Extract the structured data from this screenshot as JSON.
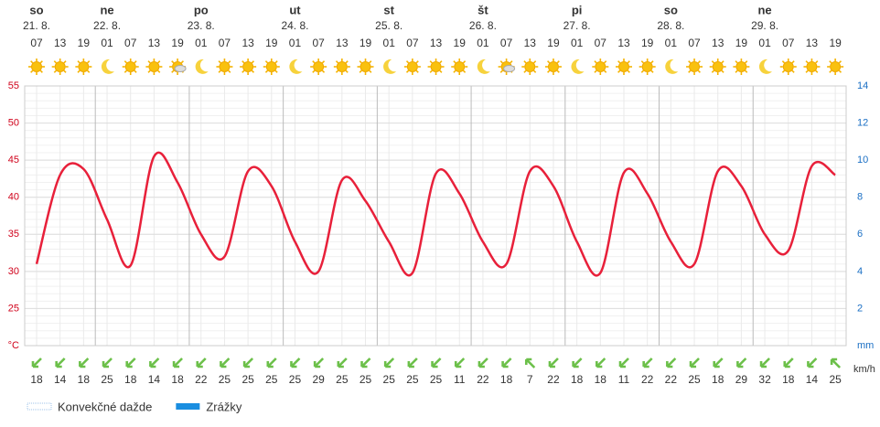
{
  "chart_data": {
    "type": "line",
    "days": [
      {
        "name": "so",
        "date": "21. 8."
      },
      {
        "name": "ne",
        "date": "22. 8."
      },
      {
        "name": "po",
        "date": "23. 8."
      },
      {
        "name": "ut",
        "date": "24. 8."
      },
      {
        "name": "st",
        "date": "25. 8."
      },
      {
        "name": "št",
        "date": "26. 8."
      },
      {
        "name": "pi",
        "date": "27. 8."
      },
      {
        "name": "so",
        "date": "28. 8."
      },
      {
        "name": "ne",
        "date": "29. 8."
      }
    ],
    "categories": [
      "07",
      "13",
      "19",
      "01",
      "07",
      "13",
      "19",
      "01",
      "07",
      "13",
      "19",
      "01",
      "07",
      "13",
      "19",
      "01",
      "07",
      "13",
      "19",
      "01",
      "07",
      "13",
      "19",
      "01",
      "07",
      "13",
      "19",
      "01",
      "07",
      "13",
      "19",
      "01",
      "07",
      "13",
      "19"
    ],
    "series": [
      {
        "name": "Teplota",
        "color": "#e8203a",
        "values": [
          31,
          43,
          43.8,
          37,
          30.8,
          45.5,
          42,
          35,
          32,
          43.5,
          41.5,
          34,
          30,
          42.3,
          39.5,
          34,
          29.8,
          43.2,
          40.5,
          34,
          31,
          43.5,
          41.5,
          34,
          29.8,
          43.3,
          40.5,
          34,
          31,
          43.5,
          41.5,
          35,
          32.8,
          44.2,
          43
        ]
      }
    ],
    "wind": [
      18,
      14,
      18,
      25,
      18,
      14,
      18,
      22,
      25,
      25,
      25,
      25,
      29,
      25,
      25,
      25,
      25,
      25,
      11,
      22,
      18,
      7,
      22,
      18,
      18,
      11,
      22,
      22,
      25,
      18,
      29,
      32,
      18,
      14,
      25
    ],
    "wind_unit": "km/h",
    "ylim": [
      20,
      55
    ],
    "yticks": [
      {
        "value": 20,
        "label": "°C"
      },
      25,
      30,
      35,
      40,
      45,
      50,
      55
    ],
    "y2lim": [
      0,
      14
    ],
    "y2ticks": [
      {
        "value": 0,
        "label": "mm"
      },
      2,
      4,
      6,
      8,
      10,
      12,
      14
    ],
    "grid": true,
    "legend": [
      {
        "name": "Konvekčné dažde",
        "color": "#9fc3e8"
      },
      {
        "name": "Zrážky",
        "color": "#1a8ee0"
      }
    ]
  }
}
